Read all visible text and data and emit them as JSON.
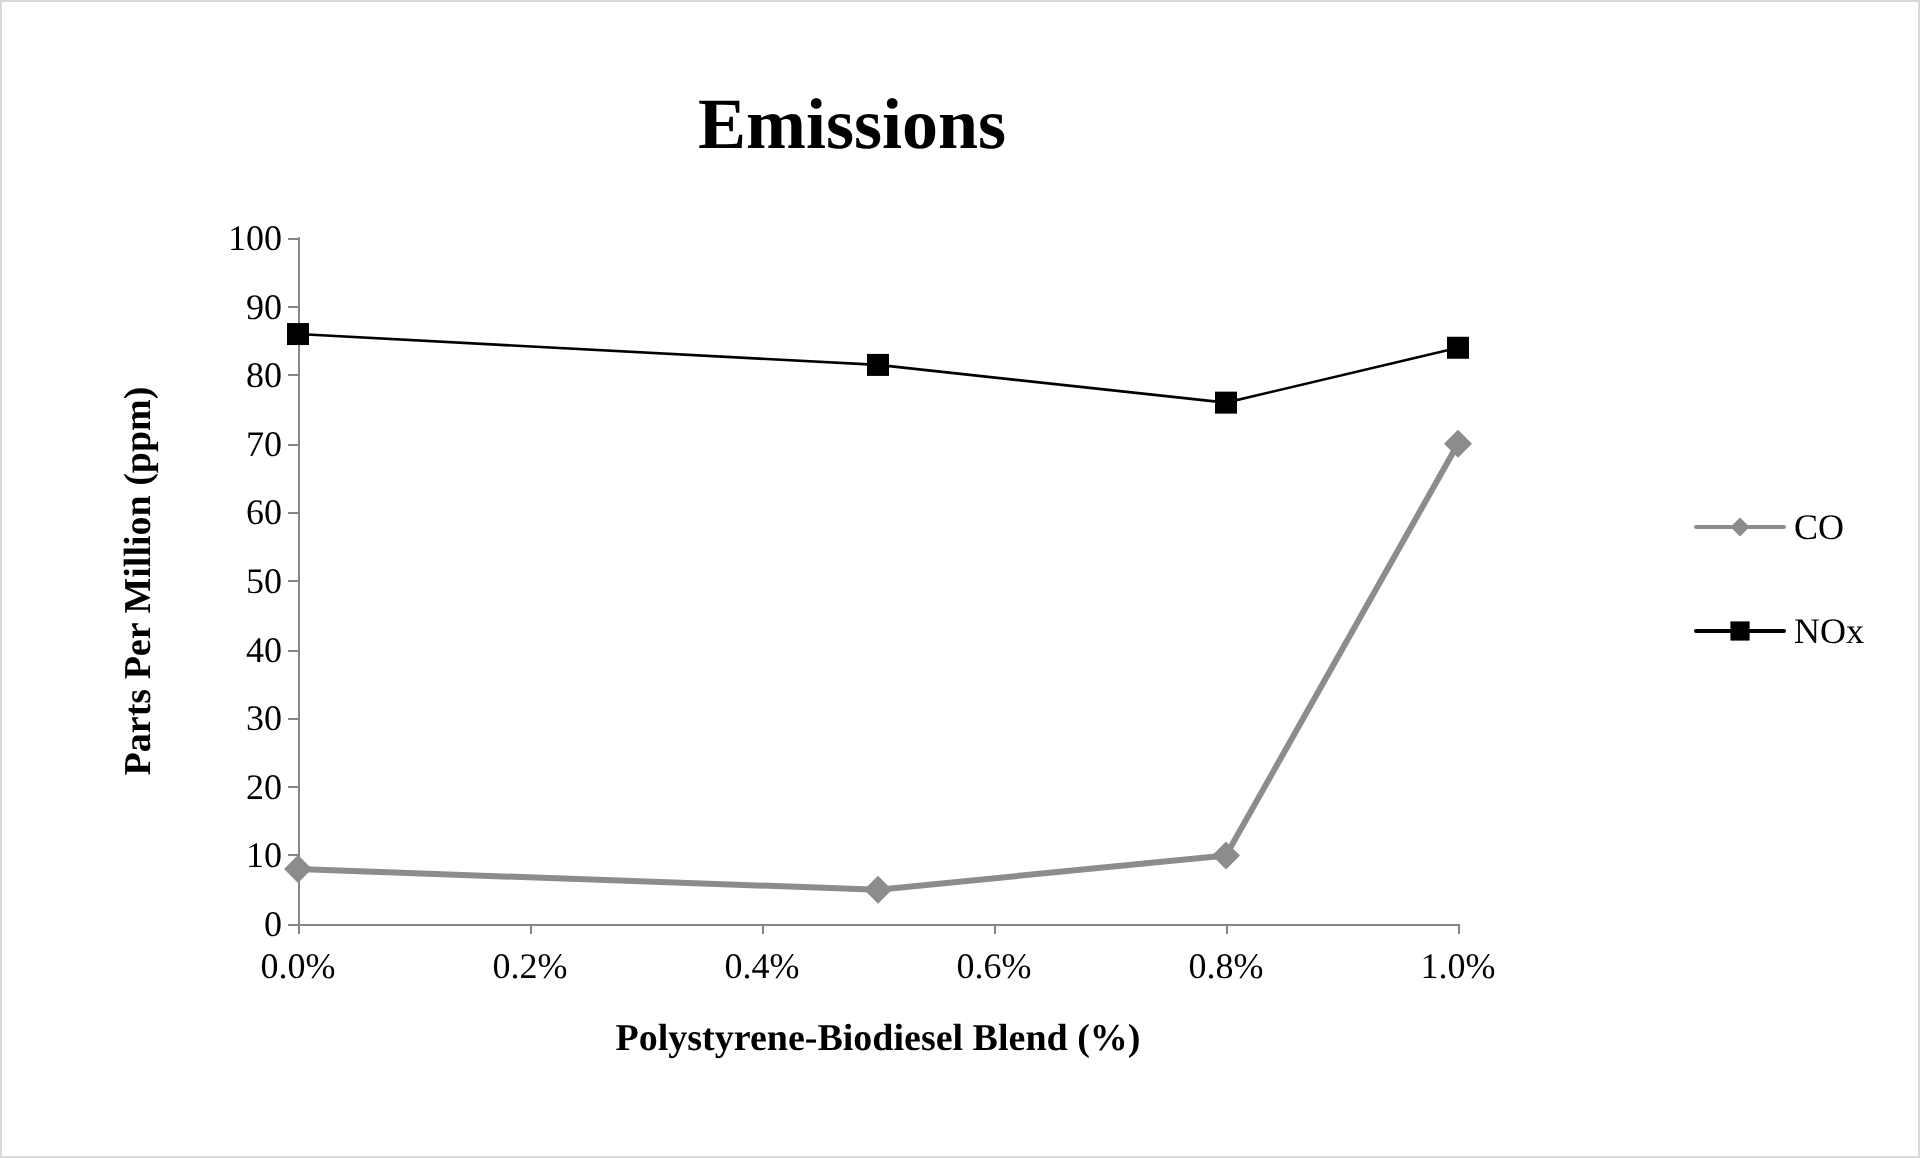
{
  "chart_data": {
    "type": "line",
    "title": "Emissions",
    "xlabel": "Polystyrene-Biodiesel Blend (%)",
    "ylabel": "Parts Per Million (ppm)",
    "x": [
      0,
      0.5,
      0.8,
      1.0
    ],
    "series": [
      {
        "name": "CO",
        "color": "#8c8c8c",
        "marker": "diamond",
        "values": [
          8,
          5,
          10,
          70
        ]
      },
      {
        "name": "NOx",
        "color": "#000000",
        "marker": "square",
        "values": [
          86,
          81.5,
          76,
          84
        ]
      }
    ],
    "xlim": [
      0,
      1.0
    ],
    "xticks": [
      {
        "value": 0,
        "label": "0.0%"
      },
      {
        "value": 0.2,
        "label": "0.2%"
      },
      {
        "value": 0.4,
        "label": "0.4%"
      },
      {
        "value": 0.6,
        "label": "0.6%"
      },
      {
        "value": 0.8,
        "label": "0.8%"
      },
      {
        "value": 1.0,
        "label": "1.0%"
      }
    ],
    "ylim": [
      0,
      100
    ],
    "yticks": [
      0,
      10,
      20,
      30,
      40,
      50,
      60,
      70,
      80,
      90,
      100
    ],
    "grid": false,
    "legend": "right",
    "line_style": "solid"
  }
}
